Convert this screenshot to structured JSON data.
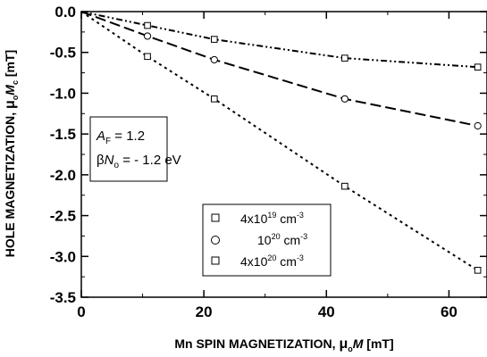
{
  "chart_data": {
    "type": "line",
    "xlim": [
      0,
      70
    ],
    "ylim": [
      -3.5,
      0.0
    ],
    "x_ticks": [
      "0",
      "20",
      "40",
      "60"
    ],
    "y_ticks": [
      "0.0",
      "-0.5",
      "-1.0",
      "-1.5",
      "-2.0",
      "-2.5",
      "-3.0",
      "-3.5"
    ],
    "x_tick_values": [
      0,
      20,
      40,
      60
    ],
    "y_tick_values": [
      0.0,
      -0.5,
      -1.0,
      -1.5,
      -2.0,
      -2.5,
      -3.0,
      -3.5
    ],
    "xlabel": {
      "prefix": "Mn SPIN MAGNETIZATION, ",
      "mu": "μ",
      "sub": "o",
      "var": "M",
      "suffix": " [mT]"
    },
    "ylabel": {
      "prefix": "HOLE MAGNETIZATION, ",
      "mu": "μ",
      "sub": "o",
      "var": "M",
      "var_sub": "c",
      "suffix": " [mT]"
    },
    "annotation": {
      "line1_var": "A",
      "line1_sub": "F",
      "line1_rest": " = 1.2",
      "line2_beta": "β",
      "line2_var": "N",
      "line2_sub": "o",
      "line2_rest": " = - 1.2 eV"
    },
    "grid": false,
    "legend_position": "lower-right",
    "series": [
      {
        "base": "4x10",
        "exp": "19",
        "unit": " cm",
        "unit_exp": "-3",
        "marker": "square",
        "dash": "dashdot",
        "x": [
          0,
          10.8,
          21.7,
          43.0,
          64.7
        ],
        "y": [
          0,
          -0.17,
          -0.34,
          -0.57,
          -0.68
        ]
      },
      {
        "base": "10",
        "exp": "20",
        "unit": " cm",
        "unit_exp": "-3",
        "marker": "circle",
        "dash": "dashed",
        "x": [
          0,
          10.8,
          21.7,
          43.0,
          64.7
        ],
        "y": [
          0,
          -0.3,
          -0.59,
          -1.07,
          -1.4
        ]
      },
      {
        "base": "4x10",
        "exp": "20",
        "unit": " cm",
        "unit_exp": "-3",
        "marker": "square",
        "dash": "dotted",
        "x": [
          0,
          10.8,
          21.7,
          43.0,
          64.7
        ],
        "y": [
          0,
          -0.55,
          -1.07,
          -2.14,
          -3.17
        ]
      }
    ]
  }
}
